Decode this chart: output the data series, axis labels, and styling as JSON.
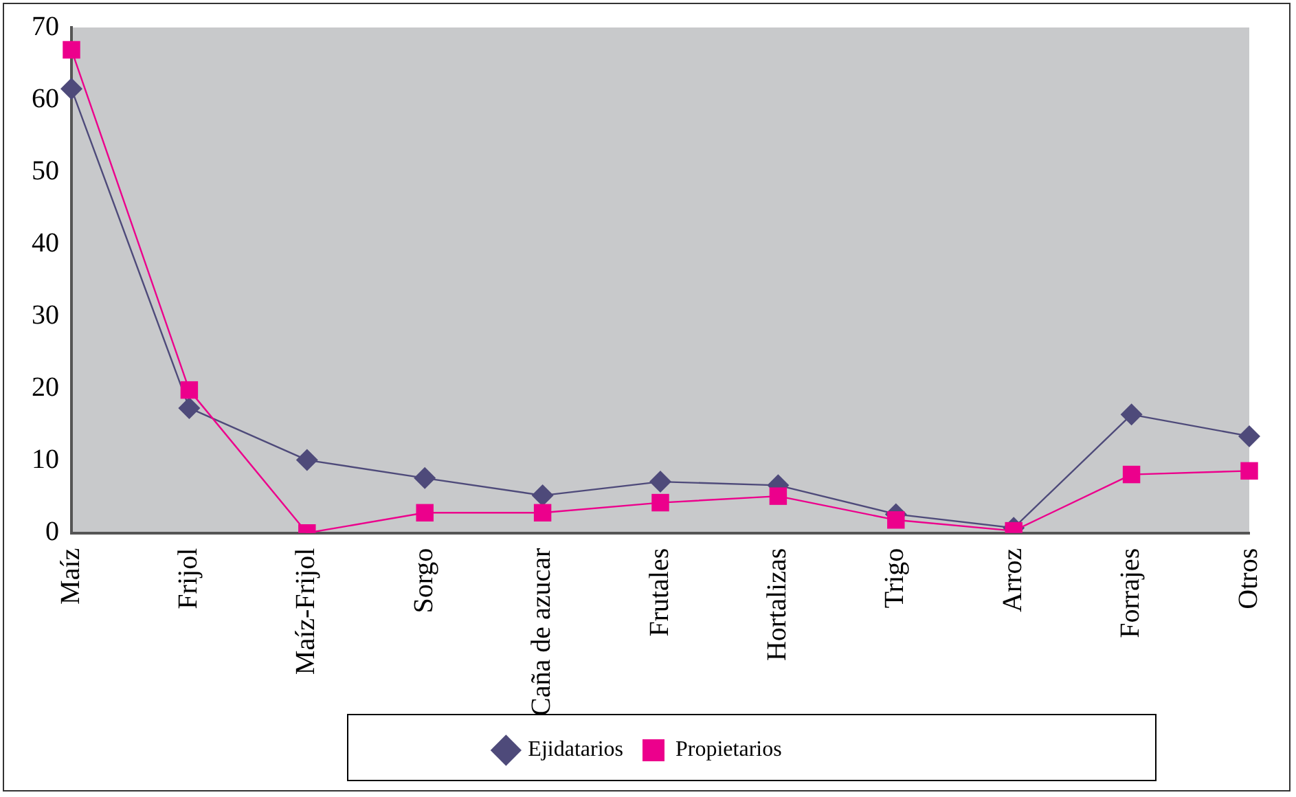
{
  "chart_data": {
    "type": "line",
    "categories": [
      "Maíz",
      "Frijol",
      "Maíz-Frijol",
      "Sorgo",
      "Caña de azucar",
      "Frutales",
      "Hortalizas",
      "Trigo",
      "Arroz",
      "Forrajes",
      "Otros"
    ],
    "series": [
      {
        "name": "Ejidatarios",
        "color": "#4e4a7a",
        "marker": "diamond",
        "values": [
          61.5,
          17.3,
          10.1,
          7.6,
          5.2,
          7.1,
          6.6,
          2.6,
          0.7,
          16.4,
          13.4
        ]
      },
      {
        "name": "Propietarios",
        "color": "#ec008c",
        "marker": "square",
        "values": [
          66.9,
          19.8,
          0,
          2.8,
          2.8,
          4.2,
          5.1,
          1.8,
          0.3,
          8.1,
          8.6
        ]
      }
    ],
    "ylim": [
      0,
      70
    ],
    "yticks": [
      0,
      10,
      20,
      30,
      40,
      50,
      60,
      70
    ],
    "grid": false,
    "legend": "bottom",
    "line_style": "solid"
  }
}
